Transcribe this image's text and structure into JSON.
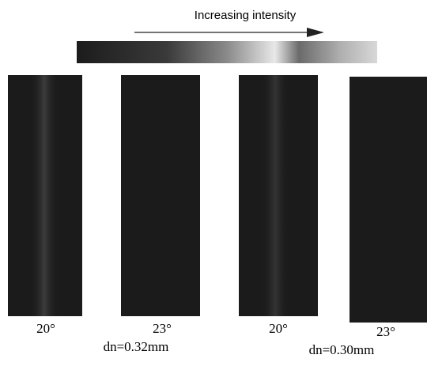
{
  "header": {
    "title": "Increasing intensity"
  },
  "panels": [
    {
      "label": "20°"
    },
    {
      "label": "23°"
    },
    {
      "label": "20°"
    },
    {
      "label": "23°"
    }
  ],
  "groups": [
    {
      "label": "dn=0.32mm"
    },
    {
      "label": "dn=0.30mm"
    }
  ]
}
